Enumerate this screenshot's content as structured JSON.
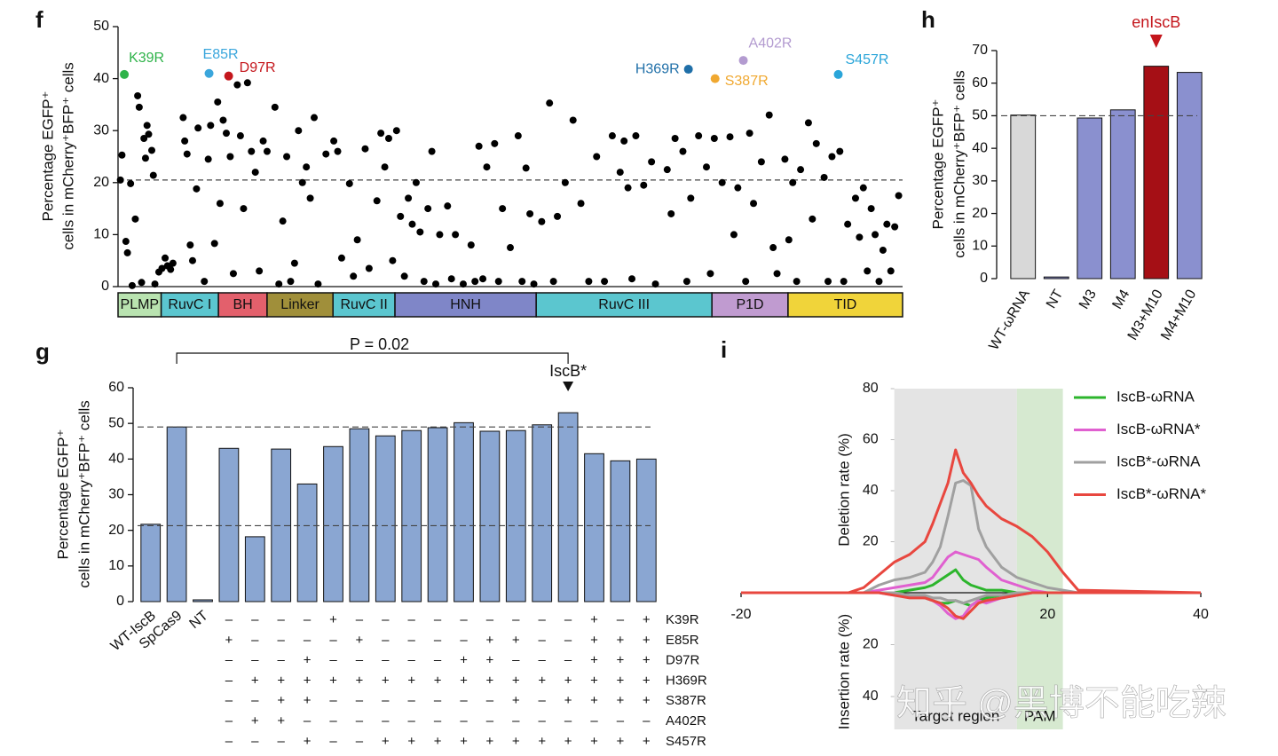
{
  "watermark": "知乎 @黑博不能吃辣",
  "chart_data": [
    {
      "type": "scatter",
      "panel": "f",
      "ylabel": [
        "Percentage EGFP⁺",
        "cells in mCherry⁺BFP⁺ cells"
      ],
      "xlim": [
        0,
        100
      ],
      "ylim": [
        0,
        50
      ],
      "yticks": [
        0,
        10,
        20,
        30,
        40,
        50
      ],
      "reference_line": 20.5,
      "color": "#000000",
      "x": [
        0.3,
        0.5,
        1,
        1.2,
        1.6,
        1.8,
        2.2,
        2.5,
        2.7,
        3,
        3.3,
        3.5,
        3.7,
        3.9,
        4.3,
        4.5,
        4.7,
        5.2,
        5.6,
        6,
        6.3,
        6.7,
        7,
        8.3,
        8.5,
        8.8,
        9.2,
        9.5,
        10,
        10.2,
        11,
        11.5,
        11.8,
        12.3,
        12.7,
        13,
        13.4,
        13.8,
        14.3,
        14.7,
        15.2,
        15.6,
        16,
        16.5,
        17,
        17.5,
        18,
        18.5,
        19,
        20,
        20.5,
        21,
        21.5,
        22,
        22.5,
        23,
        23.5,
        24,
        24.5,
        25,
        25.5,
        26.5,
        27.5,
        28,
        28.5,
        29.5,
        30,
        30.5,
        31.5,
        32,
        33,
        33.5,
        34,
        34.5,
        35,
        35.5,
        36,
        36.5,
        37,
        37.5,
        38,
        38.5,
        39,
        39.5,
        40,
        40.5,
        41,
        42,
        42.5,
        43,
        44,
        45,
        45.5,
        46,
        46.5,
        47,
        48,
        48.5,
        49,
        50,
        51,
        51.5,
        52,
        52.5,
        53,
        54,
        55,
        55.5,
        56,
        57,
        58,
        59,
        60,
        61,
        62,
        63,
        64,
        64.5,
        65,
        65.5,
        66,
        67,
        68,
        68.5,
        70,
        70.5,
        71,
        72,
        72.5,
        73,
        74,
        75,
        75.5,
        76,
        77,
        78,
        78.5,
        79,
        80,
        80.5,
        81,
        82,
        83,
        83.5,
        84,
        85,
        85.5,
        86,
        86.5,
        87,
        88,
        88.5,
        89,
        90,
        90.5,
        91,
        92,
        92.5,
        93,
        94,
        94.5,
        95,
        95.5,
        96,
        96.5,
        97,
        97.5,
        98,
        98.5,
        99,
        99.5
      ],
      "values": [
        20.5,
        25.3,
        8.7,
        6.5,
        19.8,
        0.2,
        13,
        36.7,
        34.5,
        0.8,
        28.5,
        24.7,
        31,
        29.3,
        26.2,
        21.4,
        0.5,
        2.8,
        3.5,
        5.5,
        4,
        3.3,
        4.5,
        32.5,
        28,
        25.5,
        8,
        5,
        18.8,
        30.5,
        1,
        24.5,
        31,
        8.3,
        35.5,
        16,
        32,
        29.5,
        25,
        2.5,
        38.8,
        29,
        15,
        39.2,
        26,
        22,
        3,
        28,
        26,
        34.5,
        0.5,
        12.6,
        25,
        1,
        4.5,
        30,
        20,
        23,
        17,
        32.5,
        0.5,
        25.5,
        28,
        26,
        5.5,
        19.8,
        2,
        9,
        26.5,
        3.5,
        16.5,
        29.5,
        23,
        28.5,
        5,
        30,
        13.5,
        2,
        17,
        12,
        20,
        10.5,
        1,
        15,
        26,
        0.5,
        10,
        15.5,
        1.5,
        10,
        0.5,
        8,
        1,
        27,
        1.5,
        23,
        27.5,
        1,
        15,
        7.5,
        29,
        1,
        22.8,
        14,
        0.5,
        12.5,
        35.3,
        1,
        13.5,
        20,
        32,
        16,
        1,
        25,
        1,
        29,
        22,
        28,
        19,
        1.5,
        29,
        19.5,
        24,
        0.5,
        22.5,
        14,
        28.5,
        26,
        1,
        17,
        29,
        23,
        2.5,
        28.5,
        20,
        28.8,
        10,
        19,
        1,
        29.5,
        16,
        24,
        33,
        7.5,
        2.5,
        24.5,
        9,
        20,
        1,
        22.5,
        31.5,
        13,
        27.5,
        21,
        1,
        25,
        26,
        1,
        12,
        17,
        9.5,
        19,
        3,
        15,
        10,
        1,
        7,
        12,
        3,
        11.5,
        17.5
      ],
      "series": [
        {
          "name": "K39R",
          "color": "#2fb34a",
          "x": [
            0.8
          ],
          "values": [
            40.8
          ]
        },
        {
          "name": "E85R",
          "color": "#3aa6dc",
          "x": [
            11.6
          ],
          "values": [
            41
          ]
        },
        {
          "name": "D97R",
          "color": "#c4161c",
          "x": [
            14.1
          ],
          "values": [
            40.5
          ]
        },
        {
          "name": "H369R",
          "color": "#1f6fa8",
          "x": [
            72.7
          ],
          "values": [
            41.8
          ]
        },
        {
          "name": "S387R",
          "color": "#f0a830",
          "x": [
            76.1
          ],
          "values": [
            40
          ]
        },
        {
          "name": "A402R",
          "color": "#b39bd0",
          "x": [
            79.7
          ],
          "values": [
            43.5
          ]
        },
        {
          "name": "S457R",
          "color": "#2aa5d9",
          "x": [
            91.8
          ],
          "values": [
            40.8
          ]
        }
      ],
      "domains": [
        {
          "name": "PLMP",
          "color": "#b9e3b0",
          "start": 0,
          "end": 5.5
        },
        {
          "name": "RuvC I",
          "color": "#5bc6cf",
          "start": 5.5,
          "end": 12.8
        },
        {
          "name": "BH",
          "color": "#e3606c",
          "start": 12.8,
          "end": 19
        },
        {
          "name": "Linker",
          "color": "#a08f3a",
          "start": 19,
          "end": 27.4
        },
        {
          "name": "RuvC II",
          "color": "#5bc6cf",
          "start": 27.4,
          "end": 35.3
        },
        {
          "name": "HNH",
          "color": "#7f86c8",
          "start": 35.3,
          "end": 53.3
        },
        {
          "name": "RuvC III",
          "color": "#5bc6cf",
          "start": 53.3,
          "end": 75.7
        },
        {
          "name": "P1D",
          "color": "#c09bd0",
          "start": 75.7,
          "end": 85.4
        },
        {
          "name": "TID",
          "color": "#f0d43a",
          "start": 85.4,
          "end": 100
        }
      ]
    },
    {
      "type": "bar",
      "panel": "g",
      "ylabel": [
        "Percentage EGFP⁺",
        "cells in mCherry⁺BFP⁺ cells"
      ],
      "categories": [
        "WT-IscB",
        "SpCas9",
        "NT",
        null,
        null,
        null,
        null,
        null,
        null,
        null,
        null,
        null,
        null,
        null,
        null,
        null,
        null,
        null,
        null,
        null
      ],
      "values": [
        21.7,
        49,
        0.5,
        43,
        18.2,
        42.8,
        33,
        43.5,
        48.5,
        46.5,
        48,
        48.8,
        50.2,
        47.8,
        48,
        49.6,
        53,
        41.5,
        39.5,
        40
      ],
      "color": "#8aa6d2",
      "ylim": [
        0,
        60
      ],
      "yticks": [
        0,
        10,
        20,
        30,
        40,
        50,
        60
      ],
      "reference_lines": [
        49,
        21.3
      ],
      "p_value": "P = 0.02",
      "highlight": "IscB*",
      "mutations": [
        {
          "name": "K39R",
          "marks": [
            "–",
            "–",
            "–",
            "–",
            "+",
            "–",
            "–",
            "–",
            "–",
            "–",
            "–",
            "–",
            "–",
            "–",
            "+",
            "–",
            "+"
          ]
        },
        {
          "name": "E85R",
          "marks": [
            "+",
            "–",
            "–",
            "–",
            "–",
            "+",
            "–",
            "–",
            "–",
            "–",
            "+",
            "+",
            "–",
            "–",
            "+",
            "+",
            "+"
          ]
        },
        {
          "name": "D97R",
          "marks": [
            "–",
            "–",
            "–",
            "+",
            "–",
            "–",
            "–",
            "–",
            "–",
            "+",
            "+",
            "–",
            "–",
            "–",
            "+",
            "+",
            "+"
          ]
        },
        {
          "name": "H369R",
          "marks": [
            "–",
            "+",
            "+",
            "+",
            "+",
            "+",
            "+",
            "+",
            "+",
            "+",
            "+",
            "+",
            "+",
            "+",
            "+",
            "+",
            "+"
          ]
        },
        {
          "name": "S387R",
          "marks": [
            "–",
            "–",
            "+",
            "+",
            "–",
            "–",
            "–",
            "–",
            "–",
            "–",
            "–",
            "+",
            "–",
            "+",
            "+",
            "+",
            "+"
          ]
        },
        {
          "name": "A402R",
          "marks": [
            "–",
            "+",
            "+",
            "–",
            "–",
            "–",
            "–",
            "–",
            "–",
            "–",
            "–",
            "–",
            "–",
            "–",
            "–",
            "–",
            "–"
          ]
        },
        {
          "name": "S457R",
          "marks": [
            "–",
            "–",
            "–",
            "+",
            "–",
            "–",
            "+",
            "+",
            "+",
            "+",
            "+",
            "+",
            "+",
            "+",
            "+",
            "+",
            "+"
          ]
        }
      ]
    },
    {
      "type": "bar",
      "panel": "h",
      "ylabel": [
        "Percentage EGFP⁺",
        "cells in mCherry⁺BFP⁺ cells"
      ],
      "categories": [
        "WT-ωRNA",
        "NT",
        "M3",
        "M4",
        "M3+M10",
        "M4+M10"
      ],
      "values": [
        50.2,
        0.5,
        49.3,
        51.8,
        65.2,
        63.3
      ],
      "colors": [
        "#d8d8d8",
        "#8a90cf",
        "#8a90cf",
        "#8a90cf",
        "#a50f15",
        "#8a90cf"
      ],
      "ylim": [
        0,
        70
      ],
      "yticks": [
        0,
        10,
        20,
        30,
        40,
        50,
        60,
        70
      ],
      "reference_lines": [
        50
      ],
      "highlight": "enIscB",
      "highlight_color": "#c4161c"
    },
    {
      "type": "line",
      "panel": "i",
      "ylabel": "Deletion rate (%)",
      "y2label": "Insertion rate (%)",
      "xlim": [
        -20,
        40
      ],
      "xticks": [
        -20,
        20,
        40
      ],
      "ylim": [
        0,
        80
      ],
      "yticks": [
        20,
        40,
        60,
        80
      ],
      "y2lim": [
        0,
        40
      ],
      "y2ticks": [
        20,
        40
      ],
      "regions": [
        {
          "label": "Target region",
          "start": 0,
          "end": 16,
          "color": "#e4e4e4"
        },
        {
          "label": "PAM",
          "start": 16,
          "end": 22,
          "color": "#d6e9d0"
        }
      ],
      "x": [
        -20,
        -6,
        -4,
        -2,
        0,
        2,
        4,
        5,
        6,
        7,
        8,
        9,
        10,
        11,
        12,
        14,
        16,
        18,
        20,
        22,
        24,
        40
      ],
      "series": [
        {
          "name": "IscB-ωRNA",
          "color": "#2cb52c",
          "values": [
            0,
            0,
            0,
            0,
            0,
            1,
            2,
            3,
            5,
            7,
            9,
            5,
            3,
            2,
            1,
            1,
            0,
            0,
            0,
            0,
            0,
            0
          ],
          "insertion": [
            0,
            0,
            0,
            0,
            0,
            1,
            2,
            3,
            4,
            4,
            3,
            4,
            5,
            3,
            2,
            1,
            0,
            0,
            0,
            0,
            0,
            0
          ]
        },
        {
          "name": "IscB-ωRNA*",
          "color": "#e060d0",
          "values": [
            0,
            0,
            0,
            1,
            2,
            3,
            4,
            6,
            10,
            14,
            16,
            15,
            14,
            13,
            10,
            5,
            3,
            1,
            0,
            0,
            0,
            0
          ],
          "insertion": [
            0,
            0,
            0,
            0,
            1,
            1,
            2,
            3,
            5,
            8,
            10,
            9,
            5,
            3,
            4,
            2,
            1,
            0,
            0,
            0,
            0,
            0
          ]
        },
        {
          "name": "IscB*-ωRNA",
          "color": "#a0a0a0",
          "values": [
            0,
            0,
            0,
            3,
            5,
            6,
            8,
            12,
            18,
            30,
            43,
            44,
            42,
            25,
            18,
            10,
            6,
            4,
            2,
            1,
            0,
            0
          ],
          "insertion": [
            0,
            0,
            0,
            0,
            0,
            1,
            1,
            2,
            2,
            3,
            3,
            4,
            3,
            2,
            1,
            1,
            0,
            0,
            0,
            0,
            0,
            0
          ]
        },
        {
          "name": "IscB*-ωRNA*",
          "color": "#e8473f",
          "values": [
            0,
            0,
            2,
            7,
            12,
            15,
            20,
            27,
            35,
            43,
            56,
            47,
            43,
            38,
            34,
            29,
            26,
            22,
            16,
            8,
            1,
            0
          ],
          "insertion": [
            0,
            0,
            0,
            0,
            1,
            2,
            2,
            3,
            4,
            6,
            9,
            10,
            7,
            4,
            3,
            2,
            1,
            0,
            0,
            0,
            0,
            0
          ]
        }
      ]
    }
  ]
}
